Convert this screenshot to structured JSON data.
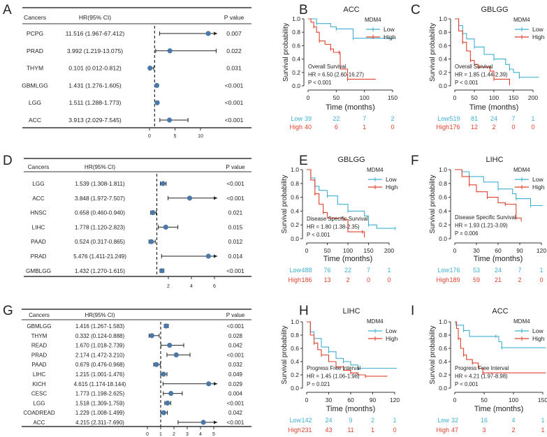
{
  "colors": {
    "low": "#3fb0d0",
    "high": "#e0412c",
    "point": "#4a78a8",
    "line": "#222222"
  },
  "chart_data": [
    {
      "panel": "A",
      "type": "forest",
      "headers": {
        "cancer": "Cancers",
        "hr": "HR(95% CI)",
        "p": "P value"
      },
      "xticks": [
        0,
        5,
        10
      ],
      "reference": 1,
      "rows": [
        {
          "cancer": "PCPG",
          "hr_text": "11.516 (1.967-67.412)",
          "hr": 11.516,
          "lo": 1.967,
          "hi": 67.412,
          "p": "0.007"
        },
        {
          "cancer": "PRAD",
          "hr_text": "3.992 (1.219-13.075)",
          "hr": 3.992,
          "lo": 1.219,
          "hi": 13.075,
          "p": "0.022"
        },
        {
          "cancer": "THYM",
          "hr_text": "0.101 (0.012-0.812)",
          "hr": 0.101,
          "lo": 0.012,
          "hi": 0.812,
          "p": "0.031"
        },
        {
          "cancer": "GBMLGG",
          "hr_text": "1.431 (1.276-1.605)",
          "hr": 1.431,
          "lo": 1.276,
          "hi": 1.605,
          "p": "<0.001"
        },
        {
          "cancer": "LGG",
          "hr_text": "1.511 (1.288-1.773)",
          "hr": 1.511,
          "lo": 1.288,
          "hi": 1.773,
          "p": "<0.001"
        },
        {
          "cancer": "ACC",
          "hr_text": "3.913 (2.029-7.545)",
          "hr": 3.913,
          "lo": 2.029,
          "hi": 7.545,
          "p": "<0.001"
        }
      ]
    },
    {
      "panel": "B",
      "type": "line",
      "title": "ACC",
      "xlabel": "Time (months)",
      "ylabel": "Survival probability",
      "xlim": [
        0,
        150
      ],
      "xticks": [
        0,
        50,
        100,
        150
      ],
      "ylim": [
        0,
        1
      ],
      "yticks": [
        "0.0",
        "0.2",
        "0.4",
        "0.6",
        "0.8",
        "1.0"
      ],
      "legend_title": "MDM4",
      "annotation": [
        "Overall Survival",
        "HR = 6.50 (2.60-16.27)",
        "P < 0.001"
      ],
      "series": [
        {
          "name": "Low",
          "points": [
            [
              0,
              1
            ],
            [
              10,
              1
            ],
            [
              15,
              0.93
            ],
            [
              40,
              0.88
            ],
            [
              50,
              0.85
            ],
            [
              80,
              0.85
            ],
            [
              80,
              0.71
            ],
            [
              155,
              0.71
            ]
          ],
          "at_risk": [
            39,
            22,
            7,
            2
          ]
        },
        {
          "name": "High",
          "points": [
            [
              0,
              1
            ],
            [
              5,
              0.95
            ],
            [
              10,
              0.88
            ],
            [
              15,
              0.8
            ],
            [
              20,
              0.67
            ],
            [
              30,
              0.62
            ],
            [
              40,
              0.55
            ],
            [
              45,
              0.5
            ],
            [
              55,
              0.5
            ],
            [
              57,
              0.25
            ],
            [
              70,
              0.1
            ],
            [
              120,
              0.1
            ]
          ],
          "at_risk": [
            40,
            6,
            1,
            0
          ]
        }
      ]
    },
    {
      "panel": "C",
      "type": "line",
      "title": "GBLGG",
      "xlabel": "Time (months)",
      "ylabel": "Survival probability",
      "xlim": [
        0,
        200
      ],
      "xticks": [
        0,
        50,
        100,
        150,
        200
      ],
      "ylim": [
        0,
        1
      ],
      "yticks": [
        "0.0",
        "0.2",
        "0.4",
        "0.6",
        "0.8",
        "1.0"
      ],
      "legend_title": "MDM4",
      "annotation": [
        "Overall Survival",
        "HR = 1.85 (1.44-2.39)",
        "P < 0.001"
      ],
      "series": [
        {
          "name": "Low",
          "points": [
            [
              0,
              1
            ],
            [
              10,
              0.9
            ],
            [
              20,
              0.78
            ],
            [
              30,
              0.7
            ],
            [
              50,
              0.58
            ],
            [
              75,
              0.47
            ],
            [
              100,
              0.4
            ],
            [
              130,
              0.32
            ],
            [
              140,
              0.25
            ],
            [
              150,
              0.2
            ],
            [
              165,
              0.13
            ],
            [
              215,
              0.13
            ]
          ],
          "at_risk": [
            519,
            81,
            24,
            7,
            1
          ]
        },
        {
          "name": "High",
          "points": [
            [
              0,
              1
            ],
            [
              10,
              0.82
            ],
            [
              20,
              0.65
            ],
            [
              30,
              0.52
            ],
            [
              40,
              0.38
            ],
            [
              50,
              0.32
            ],
            [
              60,
              0.28
            ],
            [
              90,
              0.22
            ],
            [
              100,
              0.1
            ],
            [
              135,
              0.1
            ],
            [
              140,
              0.03
            ]
          ],
          "at_risk": [
            176,
            12,
            2,
            0,
            0
          ]
        }
      ]
    },
    {
      "panel": "D",
      "type": "forest",
      "headers": {
        "cancer": "Cancers",
        "hr": "HR(95% CI)",
        "p": "P value"
      },
      "xticks": [
        2,
        4,
        6
      ],
      "reference": 1,
      "rows": [
        {
          "cancer": "LGG",
          "hr_text": "1.539 (1.308-1.811)",
          "hr": 1.539,
          "lo": 1.308,
          "hi": 1.811,
          "p": "<0.001"
        },
        {
          "cancer": "ACC",
          "hr_text": "3.848 (1.972-7.507)",
          "hr": 3.848,
          "lo": 1.972,
          "hi": 7.507,
          "p": "<0.001"
        },
        {
          "cancer": "HNSC",
          "hr_text": "0.658 (0.460-0.940)",
          "hr": 0.658,
          "lo": 0.46,
          "hi": 0.94,
          "p": "0.021"
        },
        {
          "cancer": "LIHC",
          "hr_text": "1.778 (1.120-2.823)",
          "hr": 1.778,
          "lo": 1.12,
          "hi": 2.823,
          "p": "0.015"
        },
        {
          "cancer": "PAAD",
          "hr_text": "0.524 (0.317-0.865)",
          "hr": 0.524,
          "lo": 0.317,
          "hi": 0.865,
          "p": "0.012"
        },
        {
          "cancer": "PRAD",
          "hr_text": "5.476 (1.411-21.249)",
          "hr": 5.476,
          "lo": 1.411,
          "hi": 21.249,
          "p": "0.014"
        },
        {
          "cancer": "GMBLGG",
          "hr_text": "1.432 (1.270-1.615)",
          "hr": 1.432,
          "lo": 1.27,
          "hi": 1.615,
          "p": "<0.001"
        }
      ]
    },
    {
      "panel": "E",
      "type": "line",
      "title": "GBLGG",
      "xlabel": "Time (months)",
      "ylabel": "Survival probability",
      "xlim": [
        0,
        200
      ],
      "xticks": [
        0,
        50,
        100,
        150,
        200
      ],
      "ylim": [
        0,
        1
      ],
      "yticks": [
        "0.0",
        "0.2",
        "0.4",
        "0.6",
        "0.8",
        "1.0"
      ],
      "legend_title": "MDM4",
      "annotation": [
        "Disease Specific Survival",
        "HR = 1.80 (1.38-2.35)",
        "P < 0.001"
      ],
      "series": [
        {
          "name": "Low",
          "points": [
            [
              0,
              1
            ],
            [
              10,
              0.88
            ],
            [
              20,
              0.76
            ],
            [
              30,
              0.7
            ],
            [
              50,
              0.62
            ],
            [
              75,
              0.5
            ],
            [
              100,
              0.4
            ],
            [
              140,
              0.33
            ],
            [
              150,
              0.2
            ],
            [
              170,
              0.15
            ],
            [
              215,
              0.15
            ]
          ],
          "at_risk": [
            488,
            76,
            22,
            7,
            1
          ]
        },
        {
          "name": "High",
          "points": [
            [
              0,
              1
            ],
            [
              10,
              0.85
            ],
            [
              20,
              0.65
            ],
            [
              30,
              0.5
            ],
            [
              40,
              0.38
            ],
            [
              50,
              0.3
            ],
            [
              90,
              0.28
            ],
            [
              100,
              0.1
            ],
            [
              135,
              0.1
            ],
            [
              140,
              0.02
            ]
          ],
          "at_risk": [
            186,
            13,
            2,
            0,
            0
          ]
        }
      ]
    },
    {
      "panel": "F",
      "type": "line",
      "title": "LIHC",
      "xlabel": "Time (months)",
      "ylabel": "Survival probability",
      "xlim": [
        0,
        120
      ],
      "xticks": [
        0,
        30,
        60,
        90,
        120
      ],
      "ylim": [
        0,
        1
      ],
      "yticks": [
        "0.0",
        "0.2",
        "0.4",
        "0.6",
        "0.8",
        "1.0"
      ],
      "legend_title": "MDM4",
      "annotation": [
        "Disease Specific Survival",
        "HR = 1.93 (1.21-3.09)",
        "P = 0.006"
      ],
      "series": [
        {
          "name": "Low",
          "points": [
            [
              0,
              1
            ],
            [
              10,
              0.97
            ],
            [
              20,
              0.9
            ],
            [
              40,
              0.82
            ],
            [
              60,
              0.72
            ],
            [
              80,
              0.65
            ],
            [
              85,
              0.58
            ],
            [
              100,
              0.58
            ],
            [
              105,
              0.48
            ],
            [
              122,
              0.48
            ]
          ],
          "at_risk": [
            176,
            53,
            24,
            7,
            1
          ]
        },
        {
          "name": "High",
          "points": [
            [
              0,
              1
            ],
            [
              10,
              0.9
            ],
            [
              20,
              0.78
            ],
            [
              30,
              0.68
            ],
            [
              45,
              0.6
            ],
            [
              60,
              0.52
            ],
            [
              70,
              0.5
            ],
            [
              82,
              0.5
            ],
            [
              85,
              0.3
            ],
            [
              92,
              0.25
            ]
          ],
          "at_risk": [
            189,
            59,
            21,
            2,
            0
          ]
        }
      ]
    },
    {
      "panel": "G",
      "type": "forest",
      "headers": {
        "cancer": "Cancers",
        "hr": "HR(95% CI)",
        "p": "P value"
      },
      "xticks": [
        0,
        1,
        2,
        3,
        4,
        5
      ],
      "reference": 1,
      "rows": [
        {
          "cancer": "GBMLGG",
          "hr_text": "1.416 (1.267-1.583)",
          "hr": 1.416,
          "lo": 1.267,
          "hi": 1.583,
          "p": "<0.001"
        },
        {
          "cancer": "THYM",
          "hr_text": "0.332 (0.124-0.888)",
          "hr": 0.332,
          "lo": 0.124,
          "hi": 0.888,
          "p": "0.028"
        },
        {
          "cancer": "READ",
          "hr_text": "1.670 (1.018-2.739)",
          "hr": 1.67,
          "lo": 1.018,
          "hi": 2.739,
          "p": "0.042"
        },
        {
          "cancer": "PRAD",
          "hr_text": "2.174 (1.472-3.210)",
          "hr": 2.174,
          "lo": 1.472,
          "hi": 3.21,
          "p": "<0.001"
        },
        {
          "cancer": "PAAD",
          "hr_text": "0.679 (0.476-0.968)",
          "hr": 0.679,
          "lo": 0.476,
          "hi": 0.968,
          "p": "0.032"
        },
        {
          "cancer": "LIHC",
          "hr_text": "1.215 (1.001-1.476)",
          "hr": 1.215,
          "lo": 1.001,
          "hi": 1.476,
          "p": "0.049"
        },
        {
          "cancer": "KICH",
          "hr_text": "4.615 (1.174-18.144)",
          "hr": 4.615,
          "lo": 1.174,
          "hi": 18.144,
          "p": "0.029"
        },
        {
          "cancer": "CESC",
          "hr_text": "1.773 (1.198-2.625)",
          "hr": 1.773,
          "lo": 1.198,
          "hi": 2.625,
          "p": "0.004"
        },
        {
          "cancer": "LGG",
          "hr_text": "1.518 (1.309-1.759)",
          "hr": 1.518,
          "lo": 1.309,
          "hi": 1.759,
          "p": "<0.001"
        },
        {
          "cancer": "COADREAD",
          "hr_text": "1.229 (1.008-1.499)",
          "hr": 1.229,
          "lo": 1.008,
          "hi": 1.499,
          "p": "0.042"
        },
        {
          "cancer": "ACC",
          "hr_text": "4.215 (2.311-7.690)",
          "hr": 4.215,
          "lo": 2.311,
          "hi": 7.69,
          "p": "<0.001"
        }
      ]
    },
    {
      "panel": "H",
      "type": "line",
      "title": "LIHC",
      "xlabel": "Time (months)",
      "ylabel": "Survival probability",
      "xlim": [
        0,
        120
      ],
      "xticks": [
        0,
        30,
        60,
        90,
        120
      ],
      "ylim": [
        0,
        1
      ],
      "yticks": [
        "0.0",
        "0.2",
        "0.4",
        "0.6",
        "0.8",
        "1.0"
      ],
      "legend_title": "MDM4",
      "annotation": [
        "Progress Free Interval",
        "HR = 1.45 (1.06-1.98)",
        "P = 0.021"
      ],
      "series": [
        {
          "name": "Low",
          "points": [
            [
              0,
              1
            ],
            [
              5,
              0.85
            ],
            [
              10,
              0.75
            ],
            [
              20,
              0.62
            ],
            [
              30,
              0.55
            ],
            [
              40,
              0.45
            ],
            [
              50,
              0.4
            ],
            [
              60,
              0.35
            ],
            [
              70,
              0.3
            ],
            [
              123,
              0.3
            ]
          ],
          "at_risk": [
            142,
            24,
            9,
            2,
            1
          ]
        },
        {
          "name": "High",
          "points": [
            [
              0,
              1
            ],
            [
              5,
              0.8
            ],
            [
              10,
              0.68
            ],
            [
              15,
              0.58
            ],
            [
              20,
              0.5
            ],
            [
              30,
              0.4
            ],
            [
              40,
              0.32
            ],
            [
              50,
              0.27
            ],
            [
              60,
              0.23
            ],
            [
              70,
              0.2
            ],
            [
              80,
              0.18
            ],
            [
              110,
              0.18
            ]
          ],
          "at_risk": [
            231,
            43,
            11,
            1,
            0
          ]
        }
      ]
    },
    {
      "panel": "I",
      "type": "line",
      "title": "ACC",
      "xlabel": "Time (months)",
      "ylabel": "Survival probability",
      "xlim": [
        0,
        150
      ],
      "xticks": [
        0,
        50,
        100,
        150
      ],
      "ylim": [
        0,
        1
      ],
      "yticks": [
        "0.0",
        "0.2",
        "0.4",
        "0.6",
        "0.8",
        "1.0"
      ],
      "legend_title": "MDM4",
      "annotation": [
        "Progress Free Interval",
        "HR = 4.21 (1.97-8.98)",
        "P < 0.001"
      ],
      "series": [
        {
          "name": "Low",
          "points": [
            [
              0,
              1
            ],
            [
              2,
              0.95
            ],
            [
              15,
              0.87
            ],
            [
              25,
              0.78
            ],
            [
              70,
              0.78
            ],
            [
              75,
              0.7
            ],
            [
              80,
              0.61
            ],
            [
              155,
              0.61
            ]
          ],
          "at_risk": [
            32,
            16,
            4,
            1
          ]
        },
        {
          "name": "High",
          "points": [
            [
              0,
              1
            ],
            [
              3,
              0.9
            ],
            [
              6,
              0.75
            ],
            [
              10,
              0.6
            ],
            [
              15,
              0.5
            ],
            [
              20,
              0.43
            ],
            [
              30,
              0.38
            ],
            [
              40,
              0.3
            ],
            [
              48,
              0.23
            ],
            [
              155,
              0.23
            ]
          ],
          "at_risk": [
            47,
            3,
            2,
            1
          ]
        }
      ]
    }
  ]
}
